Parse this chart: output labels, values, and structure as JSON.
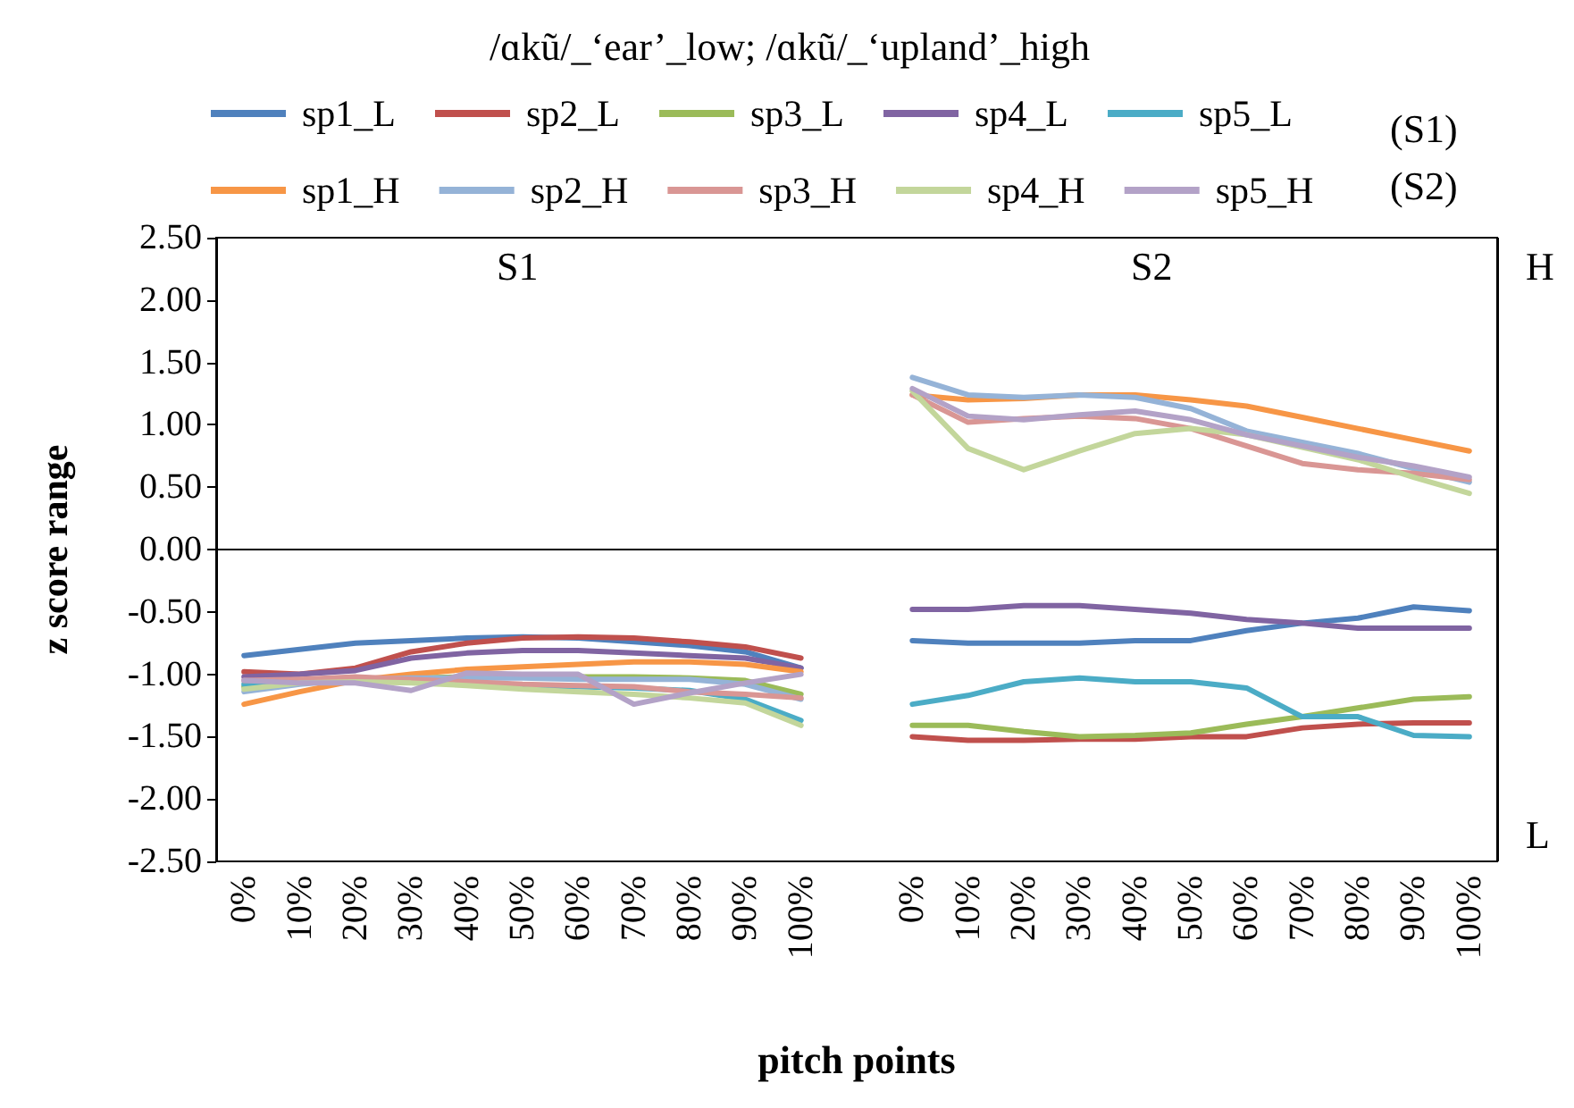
{
  "chart_data": {
    "type": "line",
    "title": "/ɑkũ/_‘ear’_low; /ɑkũ/_‘upland’_high",
    "xlabel": "pitch points",
    "ylabel": "z score range",
    "categories": [
      "0%",
      "10%",
      "20%",
      "30%",
      "40%",
      "50%",
      "60%",
      "70%",
      "80%",
      "90%",
      "100%",
      null,
      "0%",
      "10%",
      "20%",
      "30%",
      "40%",
      "50%",
      "60%",
      "70%",
      "80%",
      "90%",
      "100%"
    ],
    "series": [
      {
        "name": "sp1_L",
        "color": "#4f81bd",
        "values": [
          -0.85,
          -0.8,
          -0.75,
          -0.73,
          -0.71,
          -0.7,
          -0.71,
          -0.74,
          -0.77,
          -0.82,
          -0.95,
          null,
          -0.73,
          -0.75,
          -0.75,
          -0.75,
          -0.73,
          -0.73,
          -0.65,
          -0.59,
          -0.55,
          -0.46,
          -0.49
        ]
      },
      {
        "name": "sp2_L",
        "color": "#c0504d",
        "values": [
          -0.98,
          -1.0,
          -0.95,
          -0.82,
          -0.75,
          -0.71,
          -0.7,
          -0.71,
          -0.74,
          -0.78,
          -0.87,
          null,
          -1.5,
          -1.53,
          -1.53,
          -1.52,
          -1.52,
          -1.5,
          -1.5,
          -1.43,
          -1.4,
          -1.39,
          -1.39
        ]
      },
      {
        "name": "sp3_L",
        "color": "#9bbb59",
        "values": [
          -1.1,
          -1.06,
          -1.04,
          -1.03,
          -1.02,
          -1.02,
          -1.02,
          -1.02,
          -1.03,
          -1.05,
          -1.16,
          null,
          -1.41,
          -1.41,
          -1.46,
          -1.5,
          -1.49,
          -1.47,
          -1.4,
          -1.34,
          -1.27,
          -1.2,
          -1.18
        ]
      },
      {
        "name": "sp4_L",
        "color": "#8064a2",
        "values": [
          -1.02,
          -1.0,
          -0.97,
          -0.87,
          -0.83,
          -0.81,
          -0.81,
          -0.83,
          -0.85,
          -0.87,
          -0.95,
          null,
          -0.48,
          -0.48,
          -0.45,
          -0.45,
          -0.48,
          -0.51,
          -0.56,
          -0.59,
          -0.63,
          -0.63,
          -0.63
        ]
      },
      {
        "name": "sp5_L",
        "color": "#4bacc6",
        "values": [
          -1.08,
          -1.06,
          -1.05,
          -1.05,
          -1.07,
          -1.09,
          -1.1,
          -1.11,
          -1.13,
          -1.2,
          -1.37,
          null,
          -1.24,
          -1.17,
          -1.06,
          -1.03,
          -1.06,
          -1.06,
          -1.11,
          -1.34,
          -1.34,
          -1.49,
          -1.5
        ]
      },
      {
        "name": "sp1_H",
        "color": "#f79646",
        "values": [
          -1.24,
          -1.14,
          -1.05,
          -1.0,
          -0.96,
          -0.94,
          -0.92,
          -0.9,
          -0.9,
          -0.92,
          -0.98,
          null,
          1.24,
          1.2,
          1.21,
          1.24,
          1.24,
          1.2,
          1.15,
          1.06,
          0.97,
          0.88,
          0.79
        ]
      },
      {
        "name": "sp2_H",
        "color": "#95b3d7",
        "values": [
          -1.14,
          -1.08,
          -1.04,
          -1.03,
          -1.03,
          -1.03,
          -1.04,
          -1.04,
          -1.04,
          -1.08,
          -1.2,
          null,
          1.38,
          1.24,
          1.22,
          1.24,
          1.22,
          1.13,
          0.95,
          0.86,
          0.77,
          0.65,
          0.54
        ]
      },
      {
        "name": "sp3_H",
        "color": "#d99694",
        "values": [
          -1.05,
          -1.04,
          -1.02,
          -1.04,
          -1.06,
          -1.08,
          -1.09,
          -1.1,
          -1.14,
          -1.16,
          -1.19,
          null,
          1.24,
          1.02,
          1.05,
          1.07,
          1.05,
          0.97,
          0.83,
          0.69,
          0.64,
          0.61,
          0.56
        ]
      },
      {
        "name": "sp4_H",
        "color": "#c3d69b",
        "values": [
          -1.12,
          -1.07,
          -1.06,
          -1.07,
          -1.09,
          -1.12,
          -1.14,
          -1.16,
          -1.19,
          -1.23,
          -1.41,
          null,
          1.27,
          0.81,
          0.64,
          0.79,
          0.93,
          0.97,
          0.92,
          0.82,
          0.72,
          0.58,
          0.45
        ]
      },
      {
        "name": "sp5_H",
        "color": "#b3a2c7",
        "values": [
          -1.05,
          -1.07,
          -1.07,
          -1.13,
          -0.99,
          -1.0,
          -1.0,
          -1.24,
          -1.15,
          -1.07,
          -1.0,
          null,
          1.29,
          1.07,
          1.04,
          1.08,
          1.11,
          1.04,
          0.92,
          0.83,
          0.74,
          0.67,
          0.58
        ]
      }
    ],
    "ylim": [
      -2.5,
      2.5
    ],
    "yticks": [
      {
        "value": -2.5,
        "label": "-2.50"
      },
      {
        "value": -2,
        "label": "-2.00"
      },
      {
        "value": -1.5,
        "label": "-1.50"
      },
      {
        "value": -1,
        "label": "-1.00"
      },
      {
        "value": -0.5,
        "label": "-0.50"
      },
      {
        "value": 0,
        "label": "0.00"
      },
      {
        "value": 0.5,
        "label": "0.50"
      },
      {
        "value": 1,
        "label": "1.00"
      },
      {
        "value": 1.5,
        "label": "1.50"
      },
      {
        "value": 2,
        "label": "2.00"
      },
      {
        "value": 2.5,
        "label": "2.50"
      }
    ],
    "ref_lines": [
      {
        "axis": "y",
        "value": 0,
        "color": "#000000"
      }
    ],
    "annotations": [
      "S1",
      "S2",
      "H",
      "L",
      "(S1)",
      "(S2)"
    ],
    "legend": "top",
    "grid": false
  }
}
